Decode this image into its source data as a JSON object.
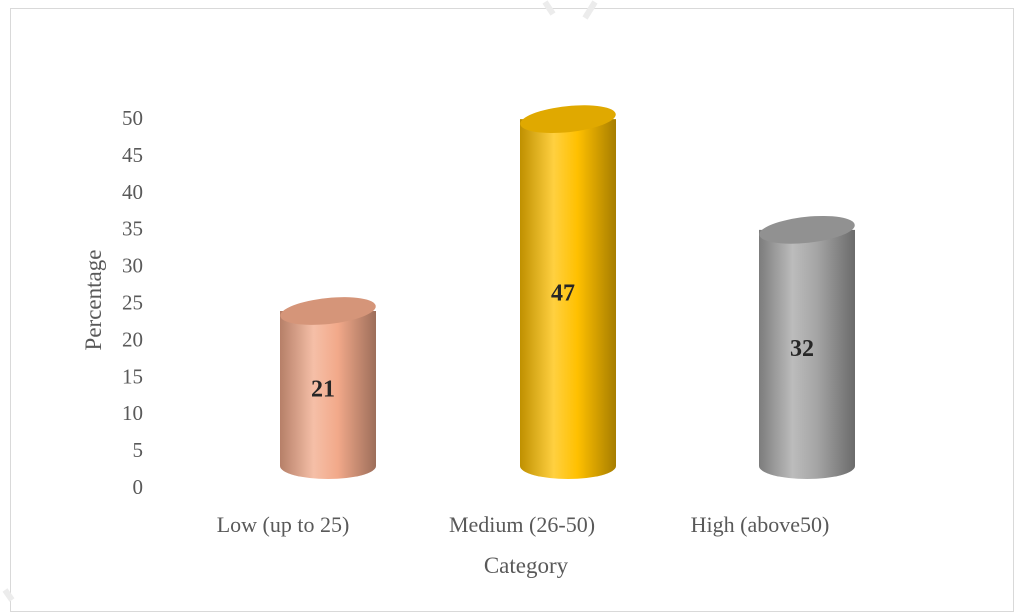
{
  "chart_data": {
    "type": "bar",
    "style": "3d-cylinder",
    "categories": [
      "Low (up to 25)",
      "Medium (26-50)",
      "High (above50)"
    ],
    "values": [
      21,
      47,
      32
    ],
    "data_labels": [
      "21",
      "47",
      "32"
    ],
    "colors": [
      "#f2a98a",
      "#ffc000",
      "#a5a5a5"
    ],
    "title": "",
    "xlabel": "Category",
    "ylabel": "Percentage",
    "ylim": [
      0,
      50
    ],
    "yticks": [
      "0",
      "5",
      "10",
      "15",
      "20",
      "25",
      "30",
      "35",
      "40",
      "45",
      "50"
    ],
    "grid": false,
    "legend": "none"
  }
}
